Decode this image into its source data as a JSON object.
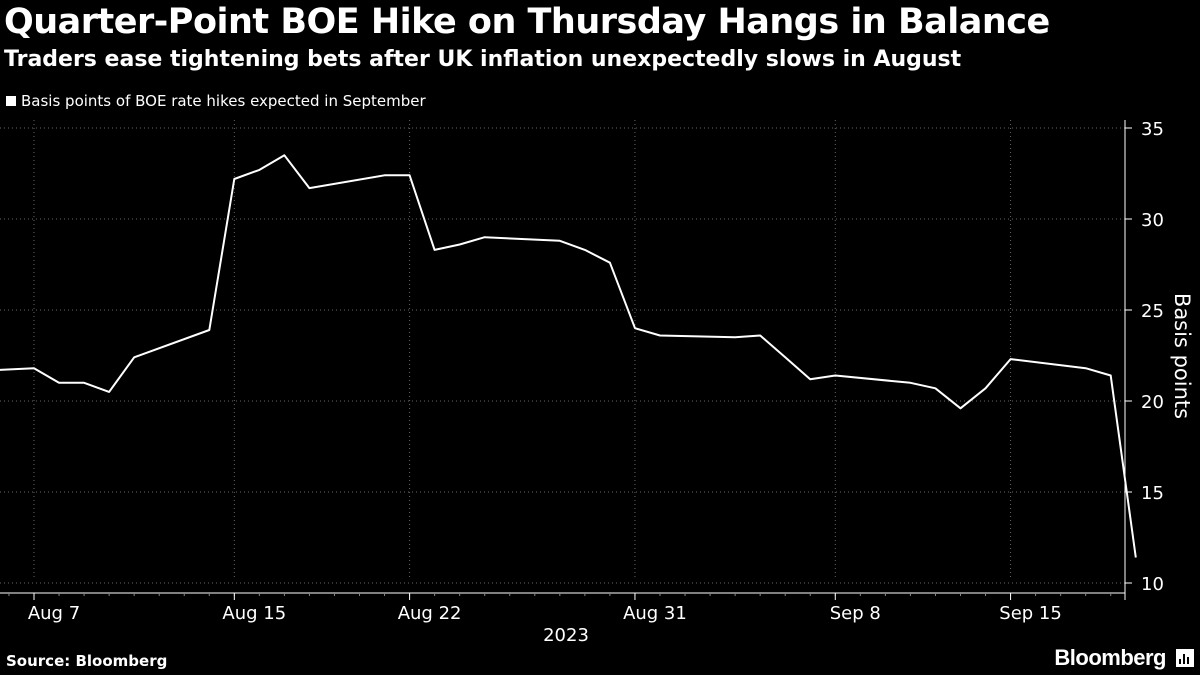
{
  "header": {
    "title": "Quarter-Point BOE Hike on Thursday Hangs in Balance",
    "subtitle": "Traders ease tightening bets after UK inflation unexpectedly slows in August"
  },
  "legend": {
    "label": "Basis points of BOE rate hikes expected in September"
  },
  "footer": {
    "source": "Source: Bloomberg",
    "brand": "Bloomberg"
  },
  "colors": {
    "background": "#000000",
    "line": "#ffffff",
    "grid": "#666666"
  },
  "chart_data": {
    "type": "line",
    "title": "Quarter-Point BOE Hike on Thursday Hangs in Balance",
    "ylabel": "Basis points",
    "xlabel": "2023",
    "ylim": [
      10,
      35
    ],
    "yticks": [
      10,
      15,
      20,
      25,
      30,
      35
    ],
    "y_axis_side": "right",
    "grid": "horizontal dotted",
    "legend_position": "top-left",
    "x_ticks": [
      {
        "date": "2023-08-07",
        "label": "Aug 7"
      },
      {
        "date": "2023-08-15",
        "label": "Aug 15"
      },
      {
        "date": "2023-08-22",
        "label": "Aug 22"
      },
      {
        "date": "2023-08-31",
        "label": "Aug 31"
      },
      {
        "date": "2023-09-08",
        "label": "Sep 8"
      },
      {
        "date": "2023-09-15",
        "label": "Sep 15"
      }
    ],
    "x_range": [
      "2023-08-05",
      "2023-09-20"
    ],
    "series": [
      {
        "name": "Basis points of BOE rate hikes expected in September",
        "points": [
          {
            "x": "2023-08-04",
            "y": 21.6
          },
          {
            "x": "2023-08-07",
            "y": 21.8
          },
          {
            "x": "2023-08-08",
            "y": 21.0
          },
          {
            "x": "2023-08-09",
            "y": 21.0
          },
          {
            "x": "2023-08-10",
            "y": 20.5
          },
          {
            "x": "2023-08-11",
            "y": 22.4
          },
          {
            "x": "2023-08-14",
            "y": 23.9
          },
          {
            "x": "2023-08-15",
            "y": 32.2
          },
          {
            "x": "2023-08-16",
            "y": 32.7
          },
          {
            "x": "2023-08-17",
            "y": 33.5
          },
          {
            "x": "2023-08-18",
            "y": 31.7
          },
          {
            "x": "2023-08-21",
            "y": 32.4
          },
          {
            "x": "2023-08-22",
            "y": 32.4
          },
          {
            "x": "2023-08-23",
            "y": 28.3
          },
          {
            "x": "2023-08-24",
            "y": 28.6
          },
          {
            "x": "2023-08-25",
            "y": 29.0
          },
          {
            "x": "2023-08-28",
            "y": 28.8
          },
          {
            "x": "2023-08-29",
            "y": 28.3
          },
          {
            "x": "2023-08-30",
            "y": 27.6
          },
          {
            "x": "2023-08-31",
            "y": 24.0
          },
          {
            "x": "2023-09-01",
            "y": 23.6
          },
          {
            "x": "2023-09-04",
            "y": 23.5
          },
          {
            "x": "2023-09-05",
            "y": 23.6
          },
          {
            "x": "2023-09-06",
            "y": 22.4
          },
          {
            "x": "2023-09-07",
            "y": 21.2
          },
          {
            "x": "2023-09-08",
            "y": 21.4
          },
          {
            "x": "2023-09-11",
            "y": 21.0
          },
          {
            "x": "2023-09-12",
            "y": 20.7
          },
          {
            "x": "2023-09-13",
            "y": 19.6
          },
          {
            "x": "2023-09-14",
            "y": 20.7
          },
          {
            "x": "2023-09-15",
            "y": 22.3
          },
          {
            "x": "2023-09-18",
            "y": 21.8
          },
          {
            "x": "2023-09-19",
            "y": 21.4
          },
          {
            "x": "2023-09-20",
            "y": 11.4
          }
        ]
      }
    ]
  }
}
